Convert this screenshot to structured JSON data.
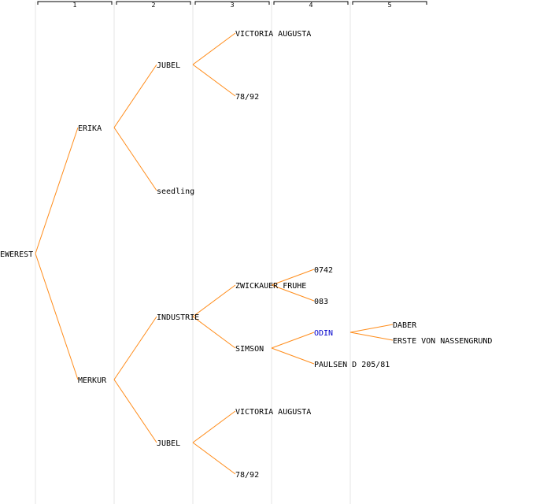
{
  "generations": [
    "1",
    "2",
    "3",
    "4",
    "5"
  ],
  "colors": {
    "edge": "#ff8c1a",
    "label": "#000000",
    "highlight": "#0000cc",
    "column_line": "#e6e6e6"
  },
  "nodes": [
    {
      "id": "everest",
      "label": "EWEREST",
      "gen": 0
    },
    {
      "id": "erika",
      "label": "ERIKA",
      "gen": 1,
      "parent": "everest"
    },
    {
      "id": "merkur",
      "label": "MERKUR",
      "gen": 1,
      "parent": "everest"
    },
    {
      "id": "jubel-1",
      "label": "JUBEL",
      "gen": 2,
      "parent": "erika"
    },
    {
      "id": "seedling",
      "label": "seedling",
      "gen": 2,
      "parent": "erika"
    },
    {
      "id": "victoria-1",
      "label": "VICTORIA AUGUSTA",
      "gen": 3,
      "parent": "jubel-1"
    },
    {
      "id": "n7892-1",
      "label": "78/92",
      "gen": 3,
      "parent": "jubel-1"
    },
    {
      "id": "industrie",
      "label": "INDUSTRIE",
      "gen": 2,
      "parent": "merkur"
    },
    {
      "id": "jubel-2",
      "label": "JUBEL",
      "gen": 2,
      "parent": "merkur"
    },
    {
      "id": "zwickauer",
      "label": "ZWICKAUER FRUHE",
      "gen": 3,
      "parent": "industrie"
    },
    {
      "id": "simson",
      "label": "SIMSON",
      "gen": 3,
      "parent": "industrie"
    },
    {
      "id": "n0742",
      "label": "0742",
      "gen": 4,
      "parent": "zwickauer"
    },
    {
      "id": "n083",
      "label": "083",
      "gen": 4,
      "parent": "zwickauer"
    },
    {
      "id": "odin",
      "label": "ODIN",
      "gen": 4,
      "parent": "simson",
      "highlight": true
    },
    {
      "id": "paulsen",
      "label": "PAULSEN D 205/81",
      "gen": 4,
      "parent": "simson"
    },
    {
      "id": "daber",
      "label": "DABER",
      "gen": 5,
      "parent": "odin"
    },
    {
      "id": "erste",
      "label": "ERSTE VON NASSENGRUND",
      "gen": 5,
      "parent": "odin"
    },
    {
      "id": "victoria-2",
      "label": "VICTORIA AUGUSTA",
      "gen": 3,
      "parent": "jubel-2"
    },
    {
      "id": "n7892-2",
      "label": "78/92",
      "gen": 3,
      "parent": "jubel-2"
    }
  ]
}
